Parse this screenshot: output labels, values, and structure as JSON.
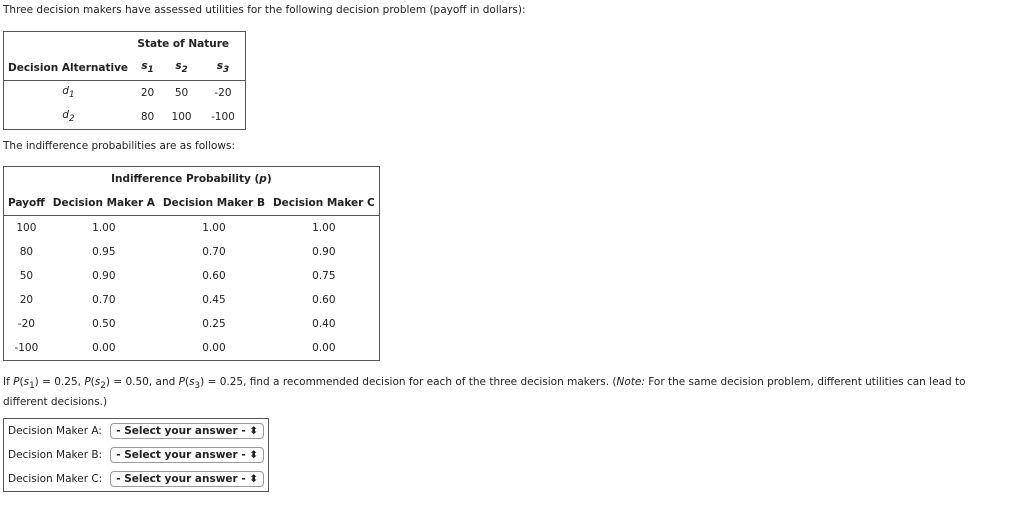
{
  "intro": "Three decision makers have assessed utilities for the following decision problem (payoff in dollars):",
  "payoff_table": {
    "group_header": "State of Nature",
    "row_header": "Decision Alternative",
    "states": [
      "s1",
      "s2",
      "s3"
    ],
    "rows": [
      {
        "alt": "d1",
        "values": [
          "20",
          "50",
          "-20"
        ]
      },
      {
        "alt": "d2",
        "values": [
          "80",
          "100",
          "-100"
        ]
      }
    ]
  },
  "indiff_intro": "The indifference probabilities are as follows:",
  "indiff_table": {
    "group_header": "Indifference Probability (p)",
    "headers": [
      "Payoff",
      "Decision Maker A",
      "Decision Maker B",
      "Decision Maker C"
    ],
    "rows": [
      [
        "100",
        "1.00",
        "1.00",
        "1.00"
      ],
      [
        "80",
        "0.95",
        "0.70",
        "0.90"
      ],
      [
        "50",
        "0.90",
        "0.60",
        "0.75"
      ],
      [
        "20",
        "0.70",
        "0.45",
        "0.60"
      ],
      [
        "-20",
        "0.50",
        "0.25",
        "0.40"
      ],
      [
        "-100",
        "0.00",
        "0.00",
        "0.00"
      ]
    ]
  },
  "question": {
    "p1": "0.25",
    "p2": "0.50",
    "p3": "0.25",
    "t1": "If ",
    "t2": " = ",
    "t3": ", ",
    "t4": " = ",
    "t5": ", and ",
    "t6": " = ",
    "t7": ", find a recommended decision for each of the three decision makers. (",
    "note": "Note:",
    "t8": " For the same decision problem, different utilities can lead to different decisions.)"
  },
  "answers": [
    {
      "label": "Decision Maker A:",
      "select": "- Select your answer -"
    },
    {
      "label": "Decision Maker B:",
      "select": "- Select your answer -"
    },
    {
      "label": "Decision Maker C:",
      "select": "- Select your answer -"
    }
  ]
}
